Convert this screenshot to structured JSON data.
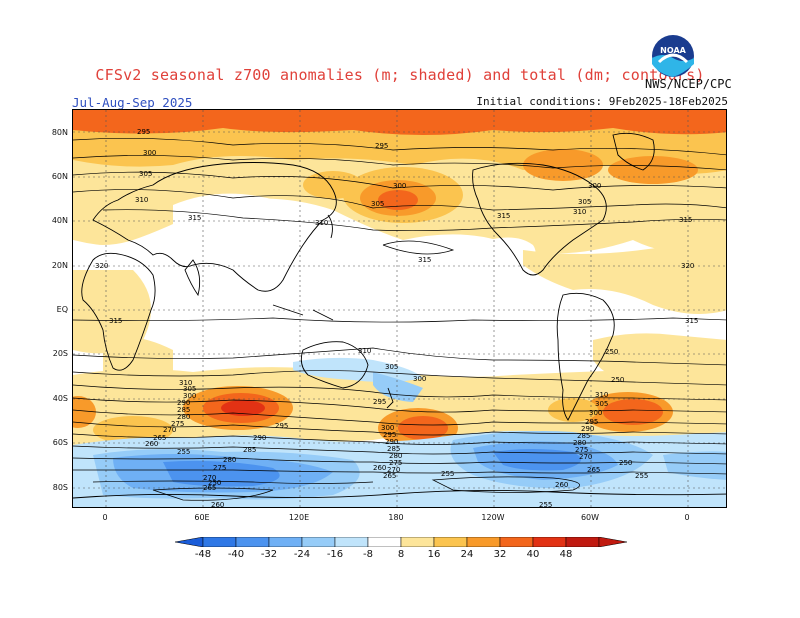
{
  "header": {
    "title": "CFSv2 seasonal z700 anomalies (m; shaded) and total (dm; contours)",
    "period": "Jul-Aug-Sep 2025",
    "initial_conditions": "Initial conditions: 9Feb2025-18Feb2025",
    "agency": "NWS/NCEP/CPC",
    "logo_text": "NOAA"
  },
  "map": {
    "lat_labels": [
      "80N",
      "60N",
      "40N",
      "20N",
      "EQ",
      "20S",
      "40S",
      "60S",
      "80S"
    ],
    "lon_labels": [
      "0",
      "60E",
      "120E",
      "180",
      "120W",
      "60W",
      "0"
    ],
    "contour_labels": [
      "295",
      "300",
      "305",
      "310",
      "315",
      "320",
      "300",
      "305",
      "310",
      "315",
      "295",
      "300",
      "305",
      "310",
      "315",
      "320",
      "315",
      "315",
      "310",
      "305",
      "300",
      "295",
      "290",
      "285",
      "280",
      "275",
      "270",
      "265",
      "260",
      "255",
      "250",
      "300",
      "295",
      "290",
      "285",
      "280",
      "275",
      "270",
      "265",
      "260",
      "255",
      "250",
      "310",
      "305",
      "300",
      "295",
      "290",
      "285",
      "280",
      "275",
      "270",
      "265",
      "260",
      "255",
      "250",
      "315",
      "310",
      "305",
      "300",
      "295",
      "290",
      "285",
      "280",
      "275",
      "270",
      "265",
      "260",
      "255",
      "250"
    ]
  },
  "colorbar": {
    "labels": [
      "-48",
      "-40",
      "-32",
      "-24",
      "-16",
      "-8",
      "8",
      "16",
      "24",
      "32",
      "40",
      "48"
    ],
    "colors": [
      "#1a5cd8",
      "#2f78e6",
      "#4c93ef",
      "#6fb0f5",
      "#96ccf8",
      "#c0e4fb",
      "#ffffff",
      "#fde59a",
      "#fbc44f",
      "#f89a2a",
      "#f3661c",
      "#e23214",
      "#c01a10"
    ]
  }
}
